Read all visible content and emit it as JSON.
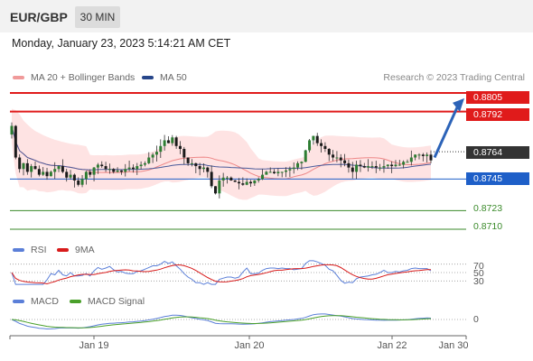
{
  "header": {
    "symbol": "EUR/GBP",
    "timeframe": "30 MIN"
  },
  "datetime": "Monday, January 23, 2023 5:14:21 AM CET",
  "legend": {
    "ma20_bb": "MA 20 + Bollinger Bands",
    "ma50": "MA 50",
    "credit": "Research © 2023 Trading Central"
  },
  "price_levels": [
    {
      "value": "0.8805",
      "style": "box",
      "color": "#e01b1b"
    },
    {
      "value": "0.8792",
      "style": "box",
      "color": "#e01b1b"
    },
    {
      "value": "0.8764",
      "style": "box",
      "color": "#333333"
    },
    {
      "value": "0.8745",
      "style": "box",
      "color": "#1e5fc8"
    },
    {
      "value": "0.8723",
      "style": "text",
      "color": "#3a8a2a"
    },
    {
      "value": "0.8710",
      "style": "text",
      "color": "#3a8a2a"
    }
  ],
  "rsi_panel": {
    "rsi_label": "RSI",
    "ma_label": "9MA",
    "levels": [
      "70",
      "50",
      "30"
    ]
  },
  "macd_panel": {
    "macd_label": "MACD",
    "signal_label": "MACD Signal",
    "zero": "0"
  },
  "x_axis": [
    "Jan 19",
    "Jan 20",
    "Jan 22",
    "Jan 30"
  ],
  "colors": {
    "red": "#e01b1b",
    "blue": "#1e5fc8",
    "green": "#3a8a2a",
    "candle": "#2e7d32",
    "bollinger": "#fdd9d9",
    "ma20": "#ee8888",
    "ma50": "#4a5a9a"
  },
  "chart_data": {
    "type": "candlestick",
    "price_ylim": [
      0.8705,
      0.881
    ],
    "close": [
      0.8782,
      0.876,
      0.8752,
      0.8756,
      0.875,
      0.8754,
      0.8752,
      0.8748,
      0.875,
      0.8747,
      0.875,
      0.8752,
      0.8754,
      0.875,
      0.8746,
      0.8748,
      0.8744,
      0.8741,
      0.8745,
      0.875,
      0.8748,
      0.8753,
      0.8755,
      0.8754,
      0.8752,
      0.8752,
      0.875,
      0.8751,
      0.875,
      0.8752,
      0.8753,
      0.8752,
      0.8754,
      0.8755,
      0.8756,
      0.876,
      0.8762,
      0.8764,
      0.8768,
      0.8772,
      0.877,
      0.8774,
      0.8768,
      0.8766,
      0.876,
      0.8756,
      0.8756,
      0.8754,
      0.8752,
      0.8753,
      0.875,
      0.874,
      0.8735,
      0.8744,
      0.8746,
      0.8746,
      0.8744,
      0.8743,
      0.8742,
      0.8741,
      0.8743,
      0.8742,
      0.8744,
      0.8745,
      0.8748,
      0.875,
      0.875,
      0.8749,
      0.875,
      0.875,
      0.8751,
      0.8752,
      0.8753,
      0.8756,
      0.8757,
      0.8765,
      0.8772,
      0.8775,
      0.877,
      0.8768,
      0.8766,
      0.8762,
      0.876,
      0.876,
      0.8758,
      0.8756,
      0.8753,
      0.875,
      0.8755,
      0.8754,
      0.8753,
      0.8754,
      0.8754,
      0.8753,
      0.8753,
      0.8754,
      0.8755,
      0.8754,
      0.8755,
      0.8755,
      0.8757,
      0.8757,
      0.876,
      0.8762,
      0.8762,
      0.8761,
      0.8762,
      0.8758
    ],
    "rsi_ylim": [
      20,
      80
    ],
    "rsi_levels": [
      70,
      50,
      30
    ],
    "macd_ylim": [
      -0.0012,
      0.0012
    ],
    "forecast": {
      "from": 0.876,
      "to": 0.88
    },
    "x_ticks": [
      "Jan 19",
      "Jan 20",
      "Jan 22",
      "Jan 30"
    ]
  }
}
